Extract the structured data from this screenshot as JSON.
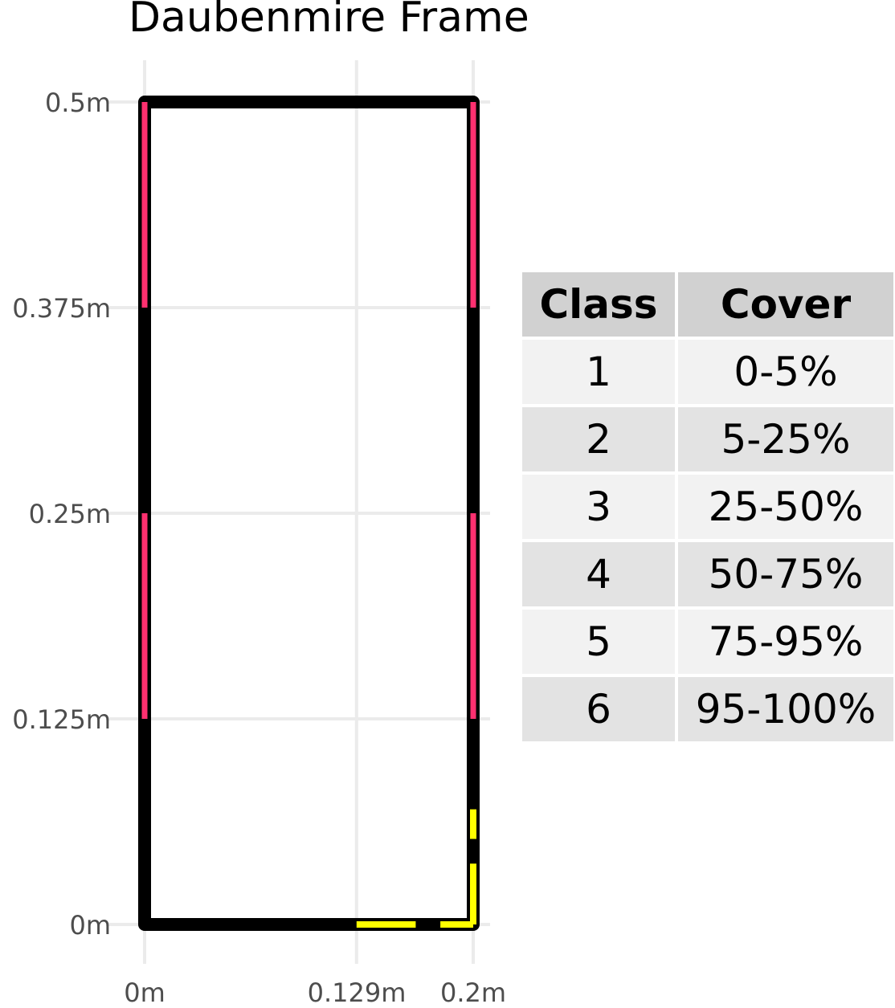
{
  "title": "Daubenmire Frame",
  "axes": {
    "x_ticks": [
      "0m",
      "0.129m",
      "0.2m"
    ],
    "y_ticks": [
      "0.5m",
      "0.375m",
      "0.25m",
      "0.125m",
      "0m"
    ]
  },
  "frame": {
    "width_m": 0.2,
    "height_m": 0.5,
    "outline_color": "#000000",
    "left_side_pink_segments_m": [
      [
        0.375,
        0.5
      ],
      [
        0.125,
        0.25
      ]
    ],
    "right_side_pink_segments_m": [
      [
        0.375,
        0.5
      ],
      [
        0.125,
        0.25
      ]
    ],
    "pink_color": "#ff3070",
    "yellow_color": "#ffff00",
    "yellow_bottom_dashes_m": [
      [
        0.129,
        0.165
      ],
      [
        0.18,
        0.2
      ]
    ],
    "yellow_right_dashes_m": [
      [
        0.0,
        0.037
      ],
      [
        0.052,
        0.07
      ]
    ]
  },
  "table": {
    "headers": [
      "Class",
      "Cover"
    ],
    "rows": [
      [
        "1",
        "0-5%"
      ],
      [
        "2",
        "5-25%"
      ],
      [
        "3",
        "25-50%"
      ],
      [
        "4",
        "50-75%"
      ],
      [
        "5",
        "75-95%"
      ],
      [
        "6",
        "95-100%"
      ]
    ],
    "header_bg": "#d1d1d1",
    "row_bg_odd": "#f2f2f2",
    "row_bg_even": "#e3e3e3"
  }
}
